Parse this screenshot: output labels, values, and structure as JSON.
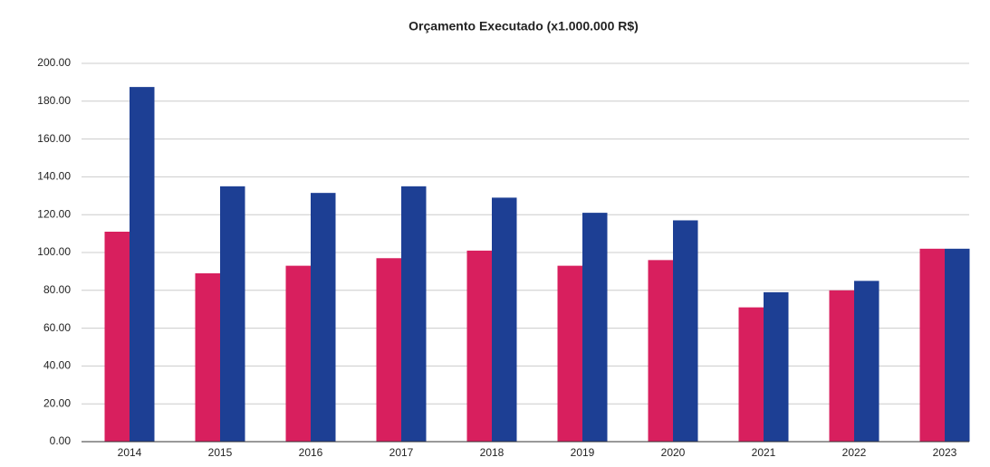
{
  "chart_data": {
    "type": "bar",
    "title": "Orçamento Executado (x1.000.000 R$)",
    "categories": [
      "2014",
      "2015",
      "2016",
      "2017",
      "2018",
      "2019",
      "2020",
      "2021",
      "2022",
      "2023"
    ],
    "series": [
      {
        "color": "#d81f5e",
        "values": [
          111,
          89,
          93,
          97,
          101,
          93,
          96,
          71,
          80,
          102
        ]
      },
      {
        "color": "#1d3f94",
        "values": [
          187.5,
          135,
          131.5,
          135,
          129,
          121,
          117,
          79,
          85,
          102
        ]
      }
    ],
    "ylim": [
      0,
      200
    ],
    "yticks": [
      {
        "value": 0,
        "label": "0.00"
      },
      {
        "value": 20,
        "label": "20.00"
      },
      {
        "value": 40,
        "label": "40.00"
      },
      {
        "value": 60,
        "label": "60.00"
      },
      {
        "value": 80,
        "label": "80.00"
      },
      {
        "value": 100,
        "label": "100.00"
      },
      {
        "value": 120,
        "label": "120.00"
      },
      {
        "value": 140,
        "label": "140.00"
      },
      {
        "value": 160,
        "label": "160.00"
      },
      {
        "value": 180,
        "label": "180.00"
      },
      {
        "value": 200,
        "label": "200.00"
      }
    ],
    "grid": true
  }
}
